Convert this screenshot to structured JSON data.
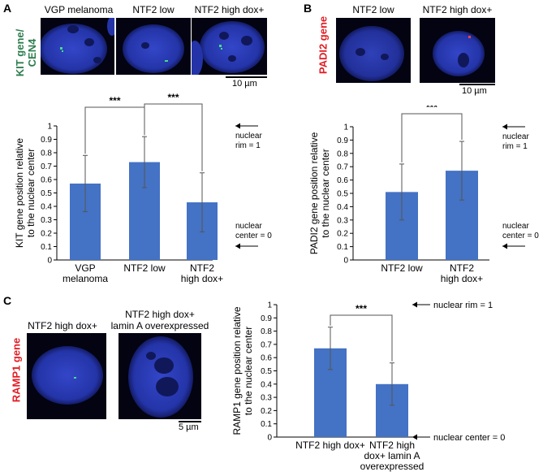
{
  "colors": {
    "bar": "#4472c4",
    "gene_green": "#2e7d4f",
    "gene_red": "#e21d24",
    "nucleus_blue": "#2a3fb8"
  },
  "panels": {
    "a": {
      "letter": "A",
      "image_labels": [
        "VGP melanoma",
        "NTF2 low",
        "NTF2 high dox+"
      ],
      "gene_label_line1": "KIT gene/",
      "gene_label_line2": "CEN4",
      "scale_bar": "10 µm"
    },
    "b": {
      "letter": "B",
      "image_labels": [
        "NTF2 low",
        "NTF2 high dox+"
      ],
      "gene_label": "PADI2 gene",
      "scale_bar": "10 µm"
    },
    "c": {
      "letter": "C",
      "image_labels": [
        "NTF2 high dox+",
        "NTF2 high dox+",
        "lamin A overexpressed"
      ],
      "gene_label": "RAMP1 gene",
      "scale_bar": "5 µm"
    }
  },
  "chart_data": [
    {
      "type": "bar",
      "panel": "A",
      "categories": [
        [
          "VGP",
          "melanoma"
        ],
        [
          "NTF2 low"
        ],
        [
          "NTF2",
          "high dox+"
        ]
      ],
      "values": [
        0.57,
        0.73,
        0.43
      ],
      "errors": [
        0.21,
        0.19,
        0.22
      ],
      "ylabel_line1": "KIT gene position relative",
      "ylabel_line2": "to the nuclear center",
      "ylim": [
        0,
        1
      ],
      "yticks": [
        "0",
        "0.1",
        "0.2",
        "0.3",
        "0.4",
        "0.5",
        "0.6",
        "0.7",
        "0.8",
        "0.9",
        "1"
      ],
      "significance": [
        {
          "pair": [
            0,
            1
          ],
          "label": "***"
        },
        {
          "pair": [
            1,
            2
          ],
          "label": "***"
        }
      ],
      "annotations": {
        "top": [
          "nuclear",
          "rim = 1"
        ],
        "bottom": [
          "nuclear",
          "center = 0"
        ]
      }
    },
    {
      "type": "bar",
      "panel": "B",
      "categories": [
        [
          "NTF2 low"
        ],
        [
          "NTF2",
          "high dox+"
        ]
      ],
      "values": [
        0.51,
        0.67
      ],
      "errors": [
        0.21,
        0.22
      ],
      "ylabel_line1": "PADI2 gene position relative",
      "ylabel_line2": "to the nuclear center",
      "ylim": [
        0,
        1
      ],
      "yticks": [
        "0",
        "0.1",
        "0.2",
        "0.3",
        "0.4",
        "0.5",
        "0.6",
        "0.7",
        "0.8",
        "0.9",
        "1"
      ],
      "significance": [
        {
          "pair": [
            0,
            1
          ],
          "label": "***"
        }
      ],
      "annotations": {
        "top": [
          "nuclear",
          "rim = 1"
        ],
        "bottom": [
          "nuclear",
          "center = 0"
        ]
      }
    },
    {
      "type": "bar",
      "panel": "C",
      "categories": [
        [
          "NTF2 high dox+"
        ],
        [
          "NTF2 high",
          "dox+ lamin A",
          "overexpressed"
        ]
      ],
      "values": [
        0.67,
        0.4
      ],
      "errors": [
        0.16,
        0.16
      ],
      "ylabel_line1": "RAMP1 gene position relative",
      "ylabel_line2": "to the nuclear center",
      "ylim": [
        0,
        1
      ],
      "yticks": [
        "0",
        "0.1",
        "0.2",
        "0.3",
        "0.4",
        "0.5",
        "0.6",
        "0.7",
        "0.8",
        "0.9",
        "1"
      ],
      "significance": [
        {
          "pair": [
            0,
            1
          ],
          "label": "***"
        }
      ],
      "annotations": {
        "top": [
          "nuclear rim = 1"
        ],
        "bottom": [
          "nuclear center = 0"
        ]
      }
    }
  ]
}
